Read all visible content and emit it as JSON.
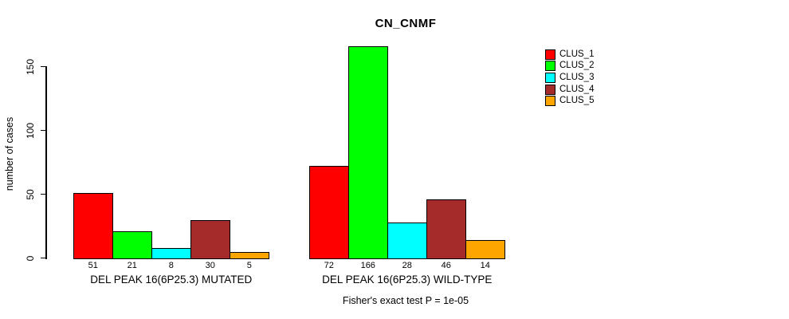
{
  "chart_data": {
    "type": "bar",
    "title": "CN_CNMF",
    "subtitle": "Fisher's exact test P = 1e-05",
    "ylabel": "number of cases",
    "xlabel": "",
    "ylim": [
      0,
      170
    ],
    "yticks": [
      0,
      50,
      100,
      150
    ],
    "grid": false,
    "bar_value_labels": true,
    "legend_position": "right-outside",
    "categories": [
      "DEL PEAK 16(6P25.3) MUTATED",
      "DEL PEAK 16(6P25.3) WILD-TYPE"
    ],
    "series": [
      {
        "name": "CLUS_1",
        "color": "#FF0000",
        "values": [
          51,
          72
        ]
      },
      {
        "name": "CLUS_2",
        "color": "#00FF00",
        "values": [
          21,
          166
        ]
      },
      {
        "name": "CLUS_3",
        "color": "#00FFFF",
        "values": [
          8,
          28
        ]
      },
      {
        "name": "CLUS_4",
        "color": "#A52A2A",
        "values": [
          30,
          46
        ]
      },
      {
        "name": "CLUS_5",
        "color": "#FFA500",
        "values": [
          5,
          14
        ]
      }
    ]
  }
}
